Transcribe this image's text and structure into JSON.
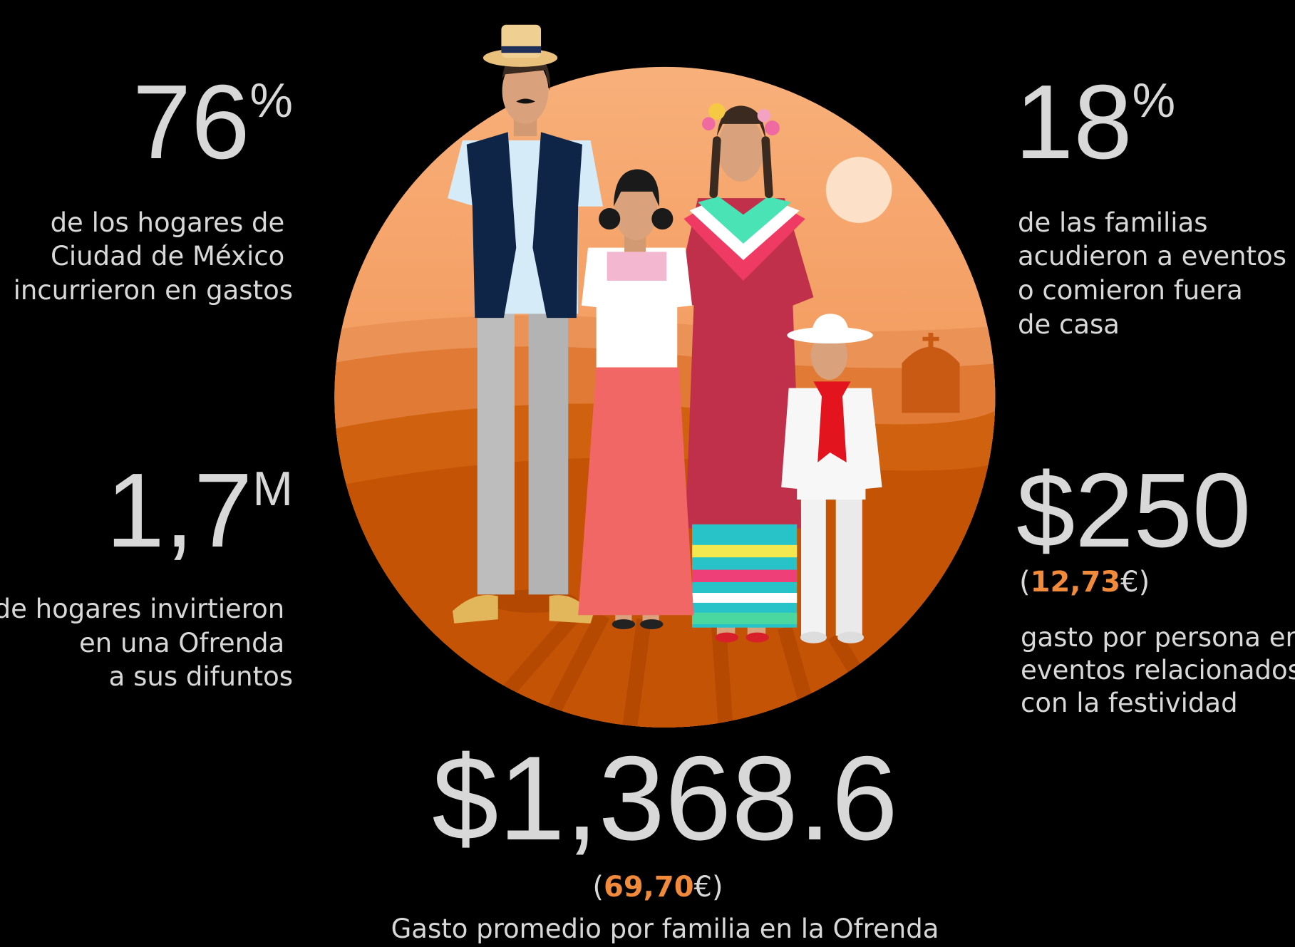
{
  "brackets": [
    "(",
    ")"
  ],
  "stats": [
    {
      "number": "76",
      "unit": "%",
      "description": [
        "de los hogares de",
        "Ciudad de México",
        "incurrieron en gastos"
      ]
    },
    {
      "number": "1,7",
      "unit": "M",
      "description": [
        "de hogares invirtieron",
        "en una Ofrenda",
        "a sus difuntos"
      ]
    },
    {
      "number": "18",
      "unit": "%",
      "description": [
        "de las familias",
        "acudieron a eventos",
        "o comieron fuera",
        "de casa"
      ]
    },
    {
      "number": "$250",
      "amount": "12,73",
      "currency": "€",
      "description": [
        "gasto por persona en",
        "eventos relacionados",
        "con la festividad"
      ]
    },
    {
      "number": "$1,368.6",
      "amount": "69,70",
      "currency": "€",
      "description": [
        "Gasto promedio por familia en la Ofrenda"
      ]
    }
  ]
}
